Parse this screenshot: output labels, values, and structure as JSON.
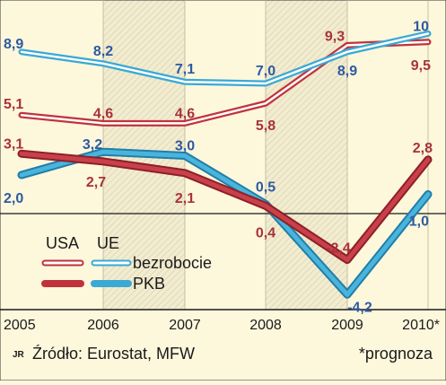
{
  "chart_data": {
    "type": "line",
    "categories": [
      "2005",
      "2006",
      "2007",
      "2008",
      "2009",
      "2010*"
    ],
    "series": [
      {
        "key": "ue_unemp",
        "values": [
          8.9,
          8.2,
          7.1,
          7.0,
          8.9,
          10
        ],
        "labels": [
          "8,9",
          "8,2",
          "7,1",
          "7,0",
          "8,9",
          "10"
        ],
        "color": "#2e5aa0"
      },
      {
        "key": "usa_unemp",
        "values": [
          5.1,
          4.6,
          4.6,
          5.8,
          9.3,
          9.5
        ],
        "labels": [
          "5,1",
          "4,6",
          "4,6",
          "5,8",
          "9,3",
          "9,5"
        ],
        "color": "#a8323a"
      },
      {
        "key": "ue_gdp",
        "values": [
          2.0,
          3.2,
          3.0,
          0.5,
          -4.2,
          1.0
        ],
        "labels": [
          "2,0",
          "3,2",
          "3,0",
          "0,5",
          "-4,2",
          "1,0"
        ],
        "color": "#2e5aa0"
      },
      {
        "key": "usa_gdp",
        "values": [
          3.1,
          2.7,
          2.1,
          0.4,
          -2.4,
          2.8
        ],
        "labels": [
          "3,1",
          "2,7",
          "2,1",
          "0,4",
          "-2,4",
          "2,8"
        ],
        "color": "#a8323a"
      }
    ],
    "legend": {
      "col_usa": "USA",
      "col_ue": "UE",
      "row_unemployment": "bezrobocie",
      "row_gdp": "PKB",
      "placement": "lower-left"
    },
    "colors": {
      "usa": "#c0333c",
      "ue": "#3aa9d4",
      "band": "#e8e2c4",
      "background": "#fdf7dc"
    }
  },
  "footer": {
    "author": "JR",
    "source": "Źródło: Eurostat, MFW",
    "note": "*prognoza"
  }
}
